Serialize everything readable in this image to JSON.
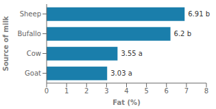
{
  "chart_data": {
    "type": "bar",
    "orientation": "horizontal",
    "categories": [
      "Goat",
      "Cow",
      "Bufallo",
      "Sheep"
    ],
    "values": [
      3.03,
      3.55,
      6.2,
      6.91
    ],
    "value_labels": [
      "3.03 a",
      "3.55 a",
      "6.2 b",
      "6.91 b"
    ],
    "data_labels": true,
    "color": "#1a7eab",
    "xlabel": "Fat (%)",
    "ylabel": "Source of milk",
    "xlim": [
      0,
      8
    ],
    "xticks": [
      0,
      1,
      2,
      3,
      4,
      5,
      6,
      7,
      8
    ],
    "grid": false
  }
}
